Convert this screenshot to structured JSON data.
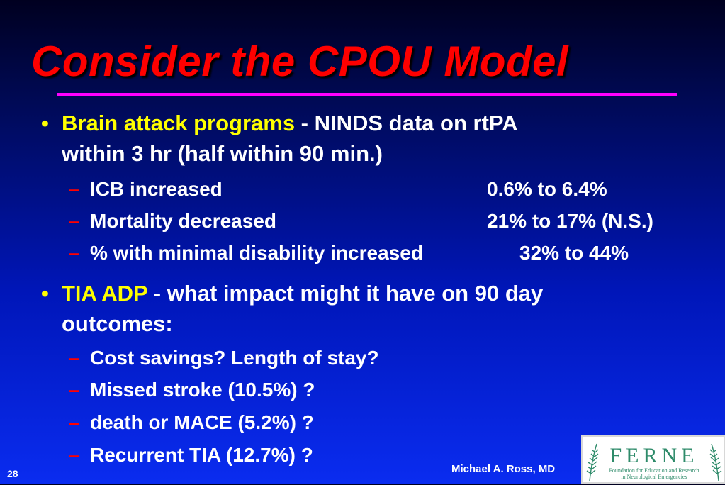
{
  "slide": {
    "title": "Consider the CPOU Model",
    "bullet_marker": "•",
    "sub_marker": "–",
    "bullets": [
      {
        "highlight": "Brain attack programs",
        "text_rest": " - NINDS data on rtPA",
        "text_cont": "within 3 hr (half within 90 min.)",
        "subs": [
          {
            "label": "ICB increased",
            "value": "0.6% to 6.4%"
          },
          {
            "label": "Mortality decreased",
            "value": "21% to 17% (N.S.)"
          },
          {
            "label": "% with minimal disability increased",
            "value": "32% to 44%"
          }
        ]
      },
      {
        "highlight": "TIA ADP",
        "text_rest": " - what impact might it have on 90 day",
        "text_cont": "outcomes:",
        "subs": [
          {
            "label": "Cost savings? Length of stay?"
          },
          {
            "label": "Missed stroke (10.5%) ?"
          },
          {
            "label": "death or MACE (5.2%) ?"
          },
          {
            "label": "Recurrent TIA (12.7%) ?"
          }
        ]
      }
    ]
  },
  "footer": {
    "slide_number": "28",
    "author": "Michael A. Ross, MD"
  },
  "logo": {
    "letters": "FERNE",
    "tagline_1": "Foundation for Education and Research",
    "tagline_2": "in Neurological Emergencies",
    "color": "#2e8b6a"
  },
  "colors": {
    "title": "#ff0000",
    "highlight": "#ffff00",
    "rule": "#ff00ff",
    "text": "#ffffff"
  }
}
